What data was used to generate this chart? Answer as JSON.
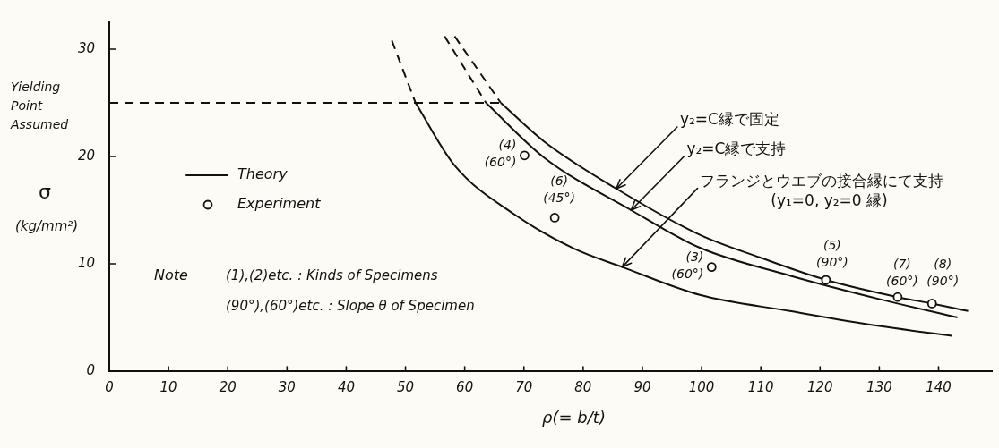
{
  "chart_data": {
    "type": "line",
    "xlabel": "ρ(= b/t)",
    "ylabel": "σ (kg/mm²)",
    "xlim": [
      0,
      149
    ],
    "ylim": [
      0,
      32.5
    ],
    "xticks": [
      0,
      10,
      20,
      30,
      40,
      50,
      60,
      70,
      80,
      90,
      100,
      110,
      120,
      130,
      140
    ],
    "yticks": [
      0,
      10,
      20,
      30
    ],
    "legend": "left",
    "series": [
      {
        "name": "Theory",
        "color": "#111111",
        "x": [
          66.1,
          73.4,
          85.6,
          99.7,
          109.8,
          121.0,
          133.1,
          138.9,
          145.0
        ],
        "values": [
          25,
          21.4,
          17.0,
          12.7,
          10.6,
          8.5,
          6.9,
          6.3,
          5.6
        ]
      },
      {
        "color": "#111111",
        "x": [
          63.6,
          73.4,
          88.1,
          99.7,
          114.9,
          130.1,
          143.2
        ],
        "values": [
          25,
          19.9,
          15.0,
          11.5,
          8.9,
          6.7,
          5.0
        ]
      },
      {
        "color": "#111111",
        "x": [
          51.7,
          58.25,
          68.4,
          78.5,
          86.6,
          99.7,
          114.9,
          130.0,
          142.2
        ],
        "values": [
          25,
          19.2,
          14.6,
          11.4,
          9.7,
          7.1,
          5.6,
          4.2,
          3.3
        ]
      },
      {
        "color": "#111111",
        "line_style": "dashed",
        "x": [
          58.3,
          66.1
        ],
        "values": [
          31.2,
          25
        ]
      },
      {
        "color": "#111111",
        "line_style": "dashed",
        "x": [
          56.6,
          63.6
        ],
        "values": [
          31.2,
          25
        ]
      },
      {
        "color": "#111111",
        "line_style": "dashed",
        "x": [
          47.7,
          51.7
        ],
        "values": [
          30.8,
          25
        ]
      },
      {
        "color": "#111111",
        "line_style": "dashed",
        "x": [
          0,
          66.1
        ],
        "values": [
          25,
          25
        ]
      },
      {
        "name": "Experiment",
        "type": "scatter",
        "marker": "circle",
        "color": "#111111",
        "x": [
          70.1,
          75.2,
          101.7,
          121.0,
          133.1,
          138.9
        ],
        "values": [
          20.1,
          14.3,
          9.7,
          8.5,
          6.9,
          6.3
        ],
        "value_labels": [
          "(4)\n(60°)",
          "(6)\n(45°)",
          "(3)\n(60°)",
          "(5)\n(90°)",
          "(7)\n(60°)",
          "(8)\n(90°)"
        ]
      }
    ],
    "annotations": [
      "Yielding Point Assumed",
      {
        "text": "y₂=C縁で固定",
        "x": 85.6,
        "y": 17.0
      },
      {
        "text": "y₂=C縁で支持",
        "x": 88.1,
        "y": 15.0
      },
      {
        "text": "フランジとウエブの接合縁にて支持\n(y₁=0, y₂=0 縁)",
        "x": 86.6,
        "y": 9.7
      },
      "Note",
      "(1),(2)etc. : Kinds of Specimens",
      "(90°),(60°)etc. : Slope θ of Specimen"
    ]
  }
}
